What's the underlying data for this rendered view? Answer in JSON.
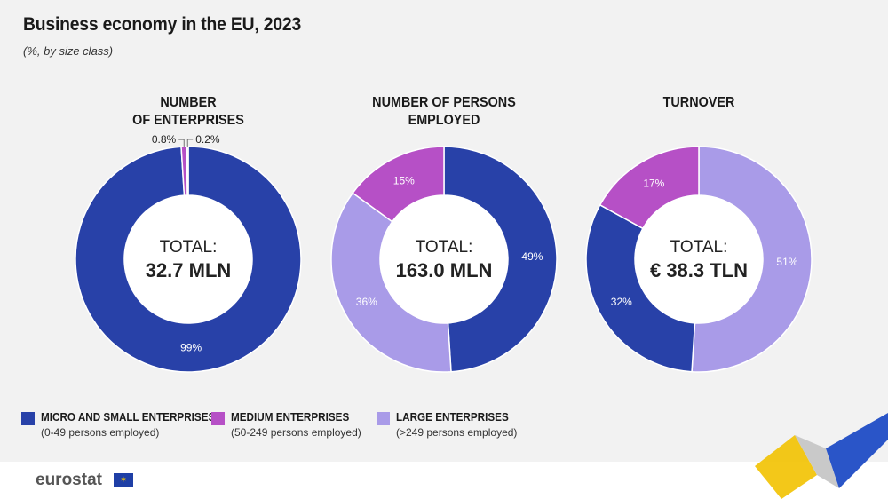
{
  "title": "Business economy in the EU, 2023",
  "subtitle": "(%, by size class)",
  "colors": {
    "micro_small": "#2841a8",
    "medium": "#b650c6",
    "large": "#a99be8",
    "background": "#f2f2f2"
  },
  "legend": [
    {
      "label": "MICRO AND SMALL ENTERPRISES",
      "sub": "(0-49 persons employed)",
      "color": "#2841a8"
    },
    {
      "label": "MEDIUM ENTERPRISES",
      "sub": "(50-249 persons employed)",
      "color": "#b650c6"
    },
    {
      "label": "LARGE ENTERPRISES",
      "sub": "(>249 persons employed)",
      "color": "#a99be8"
    }
  ],
  "charts": [
    {
      "title_line1": "NUMBER",
      "title_line2": "OF ENTERPRISES",
      "total_label": "TOTAL:",
      "total_value": "32.7 MLN"
    },
    {
      "title_line1": "NUMBER OF PERSONS",
      "title_line2": "EMPLOYED",
      "total_label": "TOTAL:",
      "total_value": "163.0 MLN"
    },
    {
      "title_line1": "TURNOVER",
      "title_line2": "",
      "total_label": "TOTAL:",
      "total_value": "€ 38.3 TLN"
    }
  ],
  "chart_data": [
    {
      "type": "pie",
      "title": "NUMBER OF ENTERPRISES",
      "categories": [
        "MICRO AND SMALL ENTERPRISES",
        "MEDIUM ENTERPRISES",
        "LARGE ENTERPRISES"
      ],
      "values": [
        99,
        0.8,
        0.2
      ],
      "value_labels": [
        "99%",
        "0.8%",
        "0.2%"
      ]
    },
    {
      "type": "pie",
      "title": "NUMBER OF PERSONS EMPLOYED",
      "categories": [
        "MICRO AND SMALL ENTERPRISES",
        "LARGE ENTERPRISES",
        "MEDIUM ENTERPRISES"
      ],
      "values": [
        49,
        36,
        15
      ],
      "value_labels": [
        "49%",
        "36%",
        "15%"
      ]
    },
    {
      "type": "pie",
      "title": "TURNOVER",
      "categories": [
        "LARGE ENTERPRISES",
        "MICRO AND SMALL ENTERPRISES",
        "MEDIUM ENTERPRISES"
      ],
      "values": [
        51,
        32,
        17
      ],
      "value_labels": [
        "51%",
        "32%",
        "17%"
      ]
    }
  ],
  "footer": {
    "logo": "eurostat"
  }
}
